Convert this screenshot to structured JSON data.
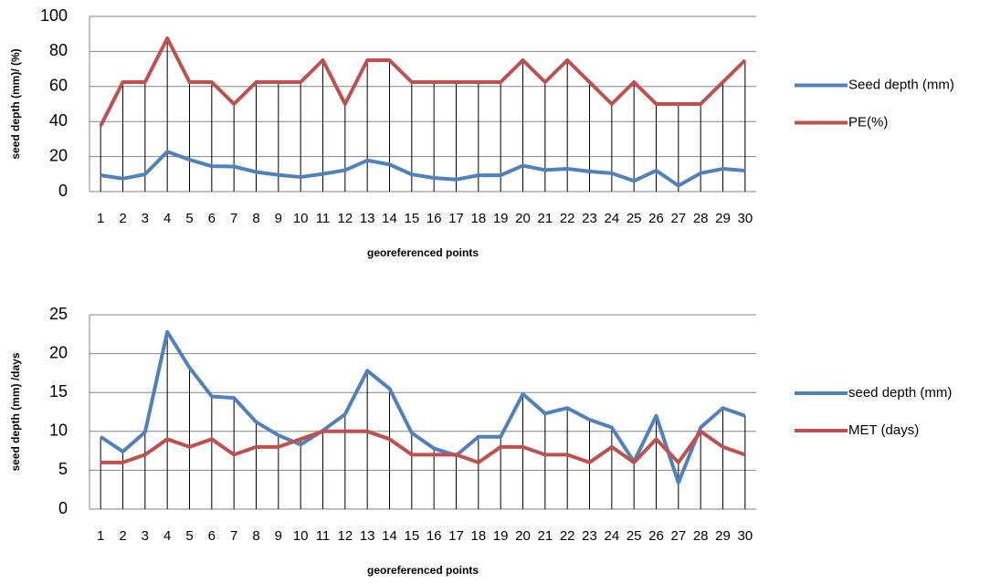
{
  "chart_data": [
    {
      "type": "line",
      "x_label": "georeferenced points",
      "y_label": "seed depth (mm)/ (%)",
      "categories": [
        "1",
        "2",
        "3",
        "4",
        "5",
        "6",
        "7",
        "8",
        "9",
        "10",
        "11",
        "12",
        "13",
        "14",
        "15",
        "16",
        "17",
        "18",
        "19",
        "20",
        "21",
        "22",
        "23",
        "24",
        "25",
        "26",
        "27",
        "28",
        "29",
        "30"
      ],
      "series": [
        {
          "name": "Seed depth (mm)",
          "color": "#4f81bd",
          "values": [
            9.3,
            7.4,
            9.9,
            22.8,
            18.2,
            14.5,
            14.3,
            11.2,
            9.5,
            8.3,
            10.1,
            12.2,
            17.8,
            15.5,
            9.8,
            7.8,
            6.9,
            9.3,
            9.3,
            14.8,
            12.3,
            13,
            11.5,
            10.5,
            6.1,
            12,
            3.4,
            10.5,
            13,
            12
          ]
        },
        {
          "name": "PE(%)",
          "color": "#c0504d",
          "values": [
            37.5,
            62.5,
            62.5,
            87.5,
            62.5,
            62.5,
            50,
            62.5,
            62.5,
            62.5,
            75,
            50,
            75,
            75,
            62.5,
            62.5,
            62.5,
            62.5,
            62.5,
            75,
            62.5,
            75,
            62.5,
            50,
            62.5,
            50,
            50,
            50,
            62.5,
            75
          ]
        }
      ],
      "ylim": [
        0,
        100
      ],
      "yticks": [
        0,
        20,
        40,
        60,
        80,
        100
      ],
      "grid": true,
      "drop_lines": true,
      "legend": "right"
    },
    {
      "type": "line",
      "x_label": "georeferenced points",
      "y_label": "seed depth (mm) /days",
      "categories": [
        "1",
        "2",
        "3",
        "4",
        "5",
        "6",
        "7",
        "8",
        "9",
        "10",
        "11",
        "12",
        "13",
        "14",
        "15",
        "16",
        "17",
        "18",
        "19",
        "20",
        "21",
        "22",
        "23",
        "24",
        "25",
        "26",
        "27",
        "28",
        "29",
        "30"
      ],
      "series": [
        {
          "name": "seed depth (mm)",
          "color": "#4f81bd",
          "values": [
            9.3,
            7.4,
            9.9,
            22.8,
            18.2,
            14.5,
            14.3,
            11.2,
            9.5,
            8.3,
            10.1,
            12.2,
            17.8,
            15.5,
            9.8,
            7.8,
            6.9,
            9.3,
            9.3,
            14.8,
            12.3,
            13,
            11.5,
            10.5,
            6.1,
            12,
            3.4,
            10.5,
            13,
            12
          ]
        },
        {
          "name": "MET (days)",
          "color": "#c0504d",
          "values": [
            6,
            6,
            7,
            9,
            8,
            9,
            7,
            8,
            8,
            9,
            10,
            10,
            10,
            9,
            7,
            7,
            7,
            6,
            8,
            8,
            7,
            7,
            6,
            8,
            6,
            9,
            6,
            10,
            8,
            7
          ]
        }
      ],
      "ylim": [
        0,
        25
      ],
      "yticks": [
        0,
        5,
        10,
        15,
        20,
        25
      ],
      "grid": true,
      "drop_lines": true,
      "legend": "right"
    }
  ]
}
